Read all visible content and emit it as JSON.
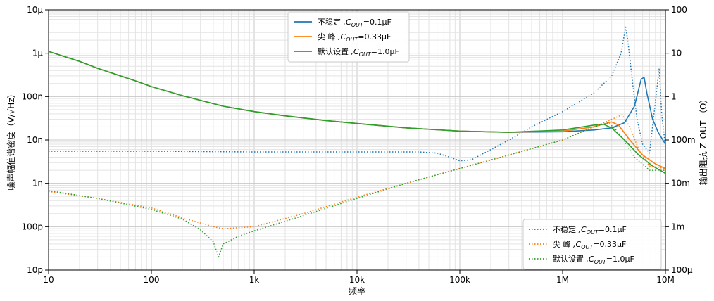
{
  "chart_data": {
    "type": "line",
    "xlabel": "频率",
    "ylabel_left": "噪声幅值谱密度（V/√Hz）",
    "ylabel_right": "输出阻抗 Z_OUT （Ω）",
    "x_scale": "log",
    "y_left_scale": "log",
    "y_right_scale": "log",
    "xlim": [
      10,
      10000000
    ],
    "ylim_left": [
      1e-11,
      1e-05
    ],
    "ylim_right": [
      0.0001,
      100
    ],
    "x_ticks": [
      "10",
      "100",
      "1k",
      "10k",
      "100k",
      "1M",
      "10M"
    ],
    "y_left_ticks": [
      "10p",
      "100p",
      "1n",
      "10n",
      "100n",
      "1μ",
      "10μ"
    ],
    "y_right_ticks": [
      "100μ",
      "1m",
      "10m",
      "100m",
      "1",
      "10",
      "100"
    ],
    "grid": true,
    "legend_noise": {
      "placement": "top-center",
      "entries": [
        {
          "label": "不稳定",
          "suffix": ",C",
          "sub": "OUT",
          "value": "=0.1μF",
          "color": "#1f77b4"
        },
        {
          "label": "尖  峰",
          "suffix": ",C",
          "sub": "OUT",
          "value": "=0.33μF",
          "color": "#ff7f0e"
        },
        {
          "label": "默认设置",
          "suffix": ",C",
          "sub": "OUT",
          "value": "=1.0μF",
          "color": "#2ca02c"
        }
      ]
    },
    "legend_impedance": {
      "placement": "bottom-right",
      "entries": [
        {
          "label": "不稳定",
          "suffix": ",C",
          "sub": "OUT",
          "value": "=0.1μF",
          "color": "#1f77b4"
        },
        {
          "label": "尖  峰",
          "suffix": ",C",
          "sub": "OUT",
          "value": "=0.33μF",
          "color": "#ff7f0e"
        },
        {
          "label": "默认设置",
          "suffix": ",C",
          "sub": "OUT",
          "value": "=1.0μF",
          "color": "#2ca02c"
        }
      ]
    },
    "series": [
      {
        "name": "不稳定,COUT=0.1μF",
        "axis": "left",
        "style": "solid",
        "color": "#1f77b4",
        "points": [
          [
            10,
            1.1e-06
          ],
          [
            20,
            6.5e-07
          ],
          [
            30,
            4.5e-07
          ],
          [
            50,
            3e-07
          ],
          [
            70,
            2.3e-07
          ],
          [
            100,
            1.7e-07
          ],
          [
            200,
            1.05e-07
          ],
          [
            500,
            6e-08
          ],
          [
            1000,
            4.5e-08
          ],
          [
            2000,
            3.6e-08
          ],
          [
            5000,
            2.8e-08
          ],
          [
            10000,
            2.4e-08
          ],
          [
            30000,
            1.9e-08
          ],
          [
            100000,
            1.6e-08
          ],
          [
            300000,
            1.5e-08
          ],
          [
            1000000,
            1.55e-08
          ],
          [
            2000000,
            1.7e-08
          ],
          [
            3000000,
            1.9e-08
          ],
          [
            4000000,
            2.5e-08
          ],
          [
            5000000,
            6e-08
          ],
          [
            5800000,
            2.5e-07
          ],
          [
            6200000,
            2.8e-07
          ],
          [
            6600000,
            1.2e-07
          ],
          [
            7500000,
            3e-08
          ],
          [
            8500000,
            1.5e-08
          ],
          [
            10000000,
            8e-09
          ]
        ]
      },
      {
        "name": "尖峰,COUT=0.33μF",
        "axis": "left",
        "style": "solid",
        "color": "#ff7f0e",
        "points": [
          [
            10,
            1.1e-06
          ],
          [
            20,
            6.5e-07
          ],
          [
            30,
            4.5e-07
          ],
          [
            50,
            3e-07
          ],
          [
            70,
            2.3e-07
          ],
          [
            100,
            1.7e-07
          ],
          [
            200,
            1.05e-07
          ],
          [
            500,
            6e-08
          ],
          [
            1000,
            4.5e-08
          ],
          [
            2000,
            3.6e-08
          ],
          [
            5000,
            2.8e-08
          ],
          [
            10000,
            2.4e-08
          ],
          [
            30000,
            1.9e-08
          ],
          [
            100000,
            1.6e-08
          ],
          [
            300000,
            1.5e-08
          ],
          [
            1000000,
            1.6e-08
          ],
          [
            2000000,
            2e-08
          ],
          [
            3000000,
            2.6e-08
          ],
          [
            3500000,
            2.2e-08
          ],
          [
            4500000,
            1e-08
          ],
          [
            6000000,
            4.5e-09
          ],
          [
            8000000,
            2.8e-09
          ],
          [
            10000000,
            2.2e-09
          ]
        ]
      },
      {
        "name": "默认设置,COUT=1.0μF",
        "axis": "left",
        "style": "solid",
        "color": "#2ca02c",
        "points": [
          [
            10,
            1.1e-06
          ],
          [
            20,
            6.5e-07
          ],
          [
            30,
            4.5e-07
          ],
          [
            50,
            3e-07
          ],
          [
            70,
            2.3e-07
          ],
          [
            100,
            1.7e-07
          ],
          [
            200,
            1.05e-07
          ],
          [
            500,
            6e-08
          ],
          [
            1000,
            4.5e-08
          ],
          [
            2000,
            3.6e-08
          ],
          [
            5000,
            2.8e-08
          ],
          [
            10000,
            2.4e-08
          ],
          [
            30000,
            1.9e-08
          ],
          [
            100000,
            1.6e-08
          ],
          [
            300000,
            1.5e-08
          ],
          [
            1000000,
            1.7e-08
          ],
          [
            2000000,
            2.2e-08
          ],
          [
            2500000,
            2.3e-08
          ],
          [
            3000000,
            1.9e-08
          ],
          [
            4000000,
            1e-08
          ],
          [
            5500000,
            4.5e-09
          ],
          [
            7500000,
            2.5e-09
          ],
          [
            10000000,
            1.7e-09
          ]
        ]
      },
      {
        "name": "不稳定,COUT=0.1μF",
        "axis": "right",
        "style": "dotted",
        "color": "#1f77b4",
        "points": [
          [
            10,
            0.055
          ],
          [
            100,
            0.055
          ],
          [
            1000,
            0.053
          ],
          [
            10000,
            0.053
          ],
          [
            40000,
            0.053
          ],
          [
            60000,
            0.05
          ],
          [
            80000,
            0.04
          ],
          [
            100000,
            0.033
          ],
          [
            130000,
            0.035
          ],
          [
            200000,
            0.06
          ],
          [
            300000,
            0.1
          ],
          [
            500000,
            0.2
          ],
          [
            1000000,
            0.45
          ],
          [
            2000000,
            1.2
          ],
          [
            3000000,
            3
          ],
          [
            3700000,
            10
          ],
          [
            4100000,
            40
          ],
          [
            4300000,
            20
          ],
          [
            4800000,
            2
          ],
          [
            5300000,
            0.3
          ],
          [
            6000000,
            0.08
          ],
          [
            7000000,
            0.05
          ],
          [
            8000000,
            0.8
          ],
          [
            8700000,
            4.5
          ],
          [
            9200000,
            0.4
          ],
          [
            10000000,
            0.07
          ]
        ]
      },
      {
        "name": "尖峰,COUT=0.33μF",
        "axis": "right",
        "style": "dotted",
        "color": "#ff7f0e",
        "points": [
          [
            10,
            0.0065
          ],
          [
            30,
            0.0045
          ],
          [
            100,
            0.0027
          ],
          [
            200,
            0.0016
          ],
          [
            400,
            0.001
          ],
          [
            500,
            0.0009
          ],
          [
            1000,
            0.001
          ],
          [
            3000,
            0.002
          ],
          [
            10000,
            0.0048
          ],
          [
            30000,
            0.01
          ],
          [
            100000,
            0.022
          ],
          [
            300000,
            0.045
          ],
          [
            1000000,
            0.1
          ],
          [
            2000000,
            0.2
          ],
          [
            3000000,
            0.3
          ],
          [
            3800000,
            0.38
          ],
          [
            4500000,
            0.2
          ],
          [
            5500000,
            0.06
          ],
          [
            7000000,
            0.025
          ],
          [
            10000000,
            0.022
          ]
        ]
      },
      {
        "name": "默认设置,COUT=1.0μF",
        "axis": "right",
        "style": "dotted",
        "color": "#2ca02c",
        "points": [
          [
            10,
            0.0068
          ],
          [
            30,
            0.0045
          ],
          [
            100,
            0.0025
          ],
          [
            200,
            0.0015
          ],
          [
            300,
            0.00085
          ],
          [
            400,
            0.00045
          ],
          [
            450,
            0.0002
          ],
          [
            500,
            0.0004
          ],
          [
            700,
            0.0006
          ],
          [
            1000,
            0.0008
          ],
          [
            3000,
            0.0018
          ],
          [
            10000,
            0.0045
          ],
          [
            30000,
            0.01
          ],
          [
            100000,
            0.022
          ],
          [
            300000,
            0.045
          ],
          [
            1000000,
            0.1
          ],
          [
            2000000,
            0.2
          ],
          [
            2800000,
            0.25
          ],
          [
            3500000,
            0.15
          ],
          [
            5000000,
            0.04
          ],
          [
            7000000,
            0.02
          ],
          [
            10000000,
            0.02
          ]
        ]
      }
    ]
  }
}
